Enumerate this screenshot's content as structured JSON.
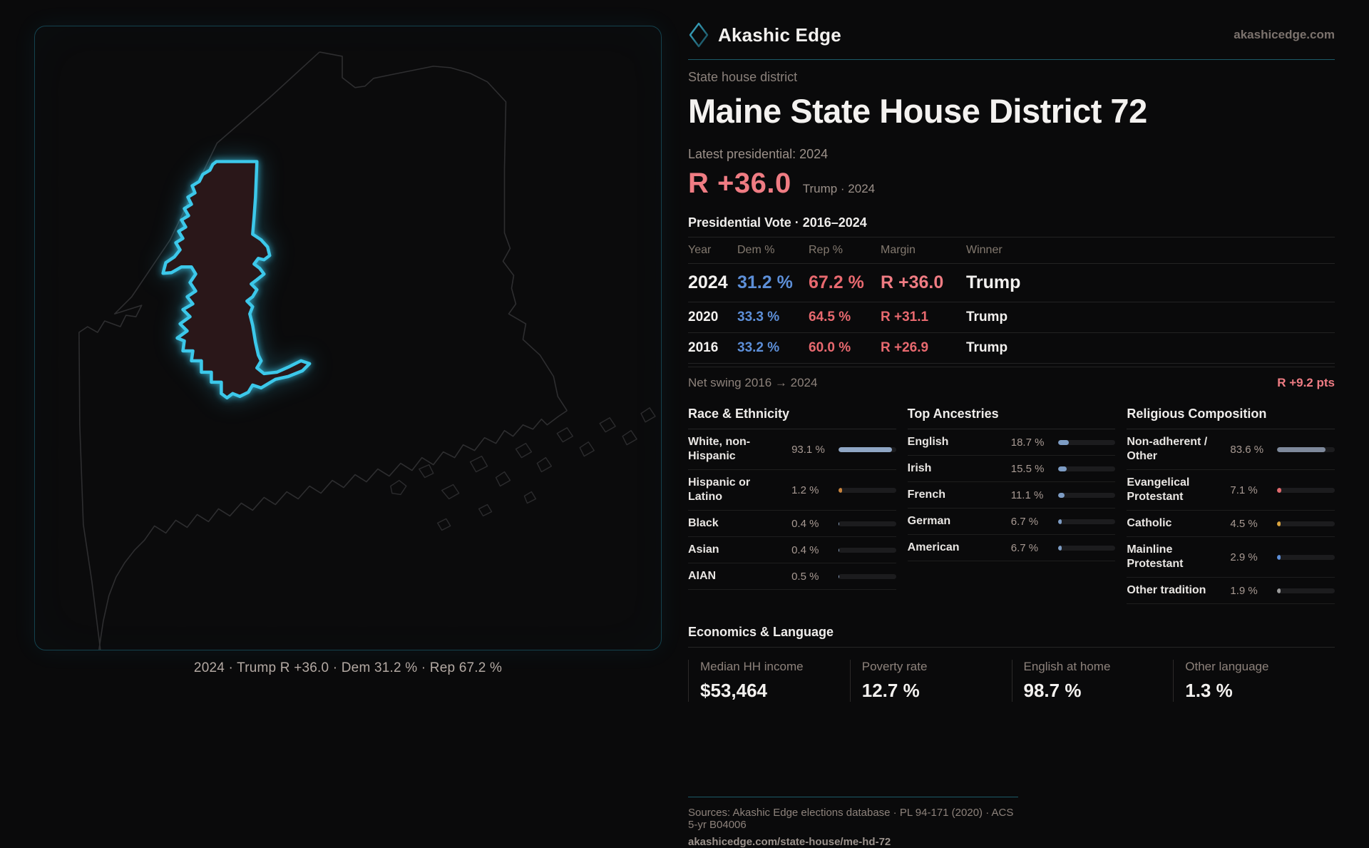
{
  "brand": {
    "name": "Akashic Edge",
    "site": "akashicedge.com",
    "logo_icon": "diamond-icon"
  },
  "map": {
    "caption": "2024 · Trump R +36.0 · Dem 31.2 % · Rep 67.2 %"
  },
  "header": {
    "eyebrow": "State house district",
    "title": "Maine State House District 72",
    "latest_label": "Latest presidential: 2024",
    "margin_value": "R +36.0",
    "margin_note": "Trump · 2024"
  },
  "table": {
    "title": "Presidential Vote · 2016–2024",
    "columns": [
      "Year",
      "Dem %",
      "Rep %",
      "Margin",
      "Winner"
    ],
    "rows": [
      {
        "year": "2024",
        "dem": "31.2 %",
        "rep": "67.2 %",
        "margin": "R +36.0",
        "winner": "Trump",
        "emphasis": true
      },
      {
        "year": "2020",
        "dem": "33.3 %",
        "rep": "64.5 %",
        "margin": "R +31.1",
        "winner": "Trump",
        "emphasis": false
      },
      {
        "year": "2016",
        "dem": "33.2 %",
        "rep": "60.0 %",
        "margin": "R +26.9",
        "winner": "Trump",
        "emphasis": false
      }
    ]
  },
  "net_swing": {
    "label": "Net swing 2016 → 2024",
    "value": "R +9.2 pts"
  },
  "demographics": [
    {
      "title": "Race & Ethnicity",
      "rows": [
        {
          "label": "White, non-Hispanic",
          "value": "93.1 %",
          "pct": 93.1,
          "color": "#8fa6c4"
        },
        {
          "label": "Hispanic or Latino",
          "value": "1.2 %",
          "pct": 1.2,
          "color": "#c8833c"
        },
        {
          "label": "Black",
          "value": "0.4 %",
          "pct": 0.4,
          "color": "#8fa6c4"
        },
        {
          "label": "Asian",
          "value": "0.4 %",
          "pct": 0.4,
          "color": "#8fa6c4"
        },
        {
          "label": "AIAN",
          "value": "0.5 %",
          "pct": 0.5,
          "color": "#8fa6c4"
        }
      ]
    },
    {
      "title": "Top Ancestries",
      "rows": [
        {
          "label": "English",
          "value": "18.7 %",
          "pct": 18.7,
          "color": "#7d9cc4"
        },
        {
          "label": "Irish",
          "value": "15.5 %",
          "pct": 15.5,
          "color": "#7d9cc4"
        },
        {
          "label": "French",
          "value": "11.1 %",
          "pct": 11.1,
          "color": "#7d9cc4"
        },
        {
          "label": "German",
          "value": "6.7 %",
          "pct": 6.7,
          "color": "#7d9cc4"
        },
        {
          "label": "American",
          "value": "6.7 %",
          "pct": 6.7,
          "color": "#7d9cc4"
        }
      ]
    },
    {
      "title": "Religious Composition",
      "rows": [
        {
          "label": "Non-adherent / Other",
          "value": "83.6 %",
          "pct": 83.6,
          "color": "#7e899b"
        },
        {
          "label": "Evangelical Protestant",
          "value": "7.1 %",
          "pct": 7.1,
          "color": "#e06a6e"
        },
        {
          "label": "Catholic",
          "value": "4.5 %",
          "pct": 4.5,
          "color": "#d9a43f"
        },
        {
          "label": "Mainline Protestant",
          "value": "2.9 %",
          "pct": 2.9,
          "color": "#5d8fd8"
        },
        {
          "label": "Other tradition",
          "value": "1.9 %",
          "pct": 1.9,
          "color": "#9a9a9a"
        }
      ]
    }
  ],
  "economics": {
    "title": "Economics & Language",
    "stats": [
      {
        "label": "Median HH income",
        "value": "$53,464"
      },
      {
        "label": "Poverty rate",
        "value": "12.7 %"
      },
      {
        "label": "English at home",
        "value": "98.7 %"
      },
      {
        "label": "Other language",
        "value": "1.3 %"
      }
    ]
  },
  "footer": {
    "sources": "Sources: Akashic Edge elections database · PL 94-171 (2020) · ACS 5-yr B04006",
    "url": "akashicedge.com/state-house/me-hd-72"
  },
  "colors": {
    "accent_cyan": "#3cc8ea",
    "rep_red": "#ef7c83",
    "dem_blue": "#5d8fd8",
    "divider_teal": "#1c5a68",
    "district_fill": "#2a1719",
    "background": "#0a0a0b"
  }
}
